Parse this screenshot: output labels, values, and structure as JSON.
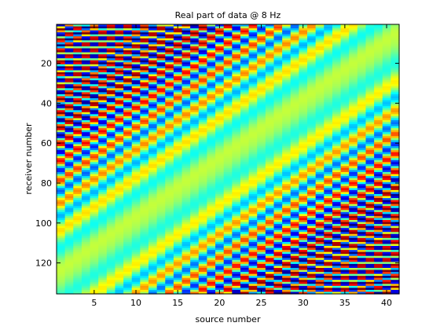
{
  "chart_data": {
    "type": "heatmap",
    "title": "Real part of data @ 8 Hz",
    "xlabel": "source number",
    "ylabel": "receiver number",
    "x_range": [
      1,
      41
    ],
    "y_range": [
      1,
      135
    ],
    "y_direction": "top-to-bottom",
    "x_ticks": [
      5,
      10,
      15,
      20,
      25,
      30,
      35,
      40
    ],
    "y_ticks": [
      20,
      40,
      60,
      80,
      100,
      120
    ],
    "colormap": "jet",
    "colorbar": false,
    "wavefronts": "diagonal oscillating bands; intensity strongest near top-right and bottom-left corners, weakest near the center diagonal",
    "colors": {
      "axes": "#000000",
      "background": "#ffffff"
    }
  }
}
